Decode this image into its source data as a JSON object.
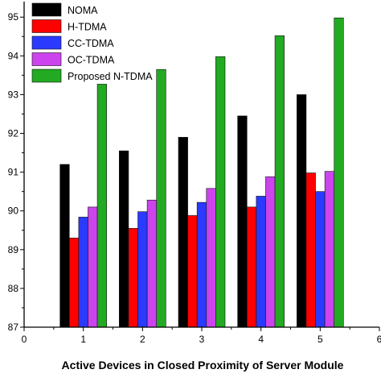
{
  "chart_data": {
    "type": "bar",
    "title": "",
    "xlabel": "Active Devices in Closed Proximity of Server Module",
    "ylabel": "",
    "x": [
      1,
      2,
      3,
      4,
      5
    ],
    "xlim": [
      0,
      6
    ],
    "ylim": [
      87,
      95.4
    ],
    "xticks": [
      "0",
      "1",
      "2",
      "3",
      "4",
      "5",
      "6"
    ],
    "yticks": [
      "87",
      "88",
      "89",
      "90",
      "91",
      "92",
      "93",
      "94",
      "95"
    ],
    "grid": false,
    "legend_position": "top-left",
    "series": [
      {
        "name": "NOMA",
        "color": "#000000",
        "values": [
          91.2,
          91.55,
          91.9,
          92.45,
          93.0
        ]
      },
      {
        "name": "H-TDMA",
        "color": "#ff0000",
        "values": [
          89.3,
          89.55,
          89.88,
          90.1,
          90.98
        ]
      },
      {
        "name": "CC-TDMA",
        "color": "#2a3aff",
        "values": [
          89.84,
          89.98,
          90.22,
          90.38,
          90.5
        ]
      },
      {
        "name": "OC-TDMA",
        "color": "#cc44ee",
        "values": [
          90.1,
          90.28,
          90.58,
          90.88,
          91.02
        ]
      },
      {
        "name": "Proposed N-TDMA",
        "color": "#22aa22",
        "values": [
          93.27,
          93.65,
          93.98,
          94.52,
          94.98
        ]
      }
    ]
  }
}
